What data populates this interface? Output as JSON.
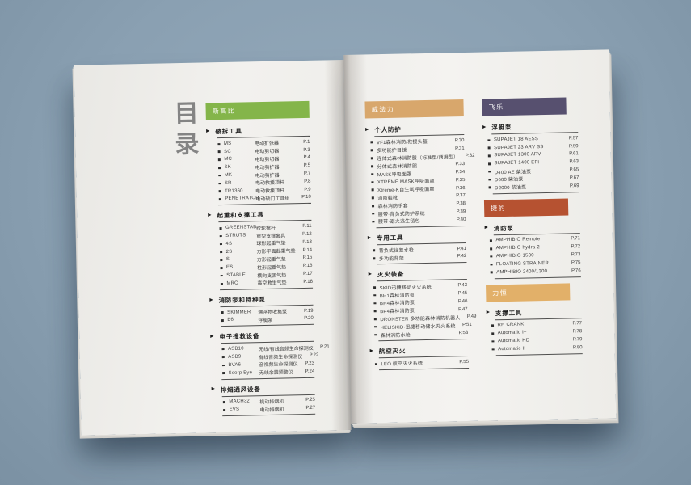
{
  "toc": {
    "title": "目录"
  },
  "left_page": {
    "blocks": [
      {
        "brand": "斯高比",
        "brand_color": "#84b54a",
        "sections": [
          {
            "title": "破拆工具",
            "items": [
              {
                "code": "MS",
                "desc": "电动扩张器",
                "page": "P.1"
              },
              {
                "code": "SC",
                "desc": "电动剪切器",
                "page": "P.3"
              },
              {
                "code": "MC",
                "desc": "电动剪切器",
                "page": "P.4"
              },
              {
                "code": "SK",
                "desc": "电动剪扩器",
                "page": "P.5"
              },
              {
                "code": "MK",
                "desc": "电动剪扩器",
                "page": "P.7"
              },
              {
                "code": "SR",
                "desc": "电动救援顶杆",
                "page": "P.8"
              },
              {
                "code": "TR1360",
                "desc": "电动救援顶杆",
                "page": "P.9"
              },
              {
                "code": "PENETRATOR",
                "desc": "电动破门工具组",
                "page": "P.10"
              }
            ]
          },
          {
            "title": "起重和支撑工具",
            "items": [
              {
                "code": "GREENSTAB",
                "desc": "绞轮撑杆",
                "page": "P.11"
              },
              {
                "code": "STRUTS",
                "desc": "重型支撑套具",
                "page": "P.12"
              },
              {
                "code": "4S",
                "desc": "球形起重气垫",
                "page": "P.13"
              },
              {
                "code": "2S",
                "desc": "方形平面起重气垫",
                "page": "P.14"
              },
              {
                "code": "S",
                "desc": "方形起重气垫",
                "page": "P.15"
              },
              {
                "code": "ES",
                "desc": "柱形起重气垫",
                "page": "P.16"
              },
              {
                "code": "STABLE",
                "desc": "横向支固气垫",
                "page": "P.17"
              },
              {
                "code": "MRC",
                "desc": "高空救生气垫",
                "page": "P.18"
              }
            ]
          },
          {
            "title": "消防泵和特种泵",
            "items": [
              {
                "code": "SKIMMER",
                "desc": "漂浮物收集泵",
                "page": "P.19"
              },
              {
                "code": "B6",
                "desc": "浮艇泵",
                "page": "P.20"
              }
            ]
          },
          {
            "title": "电子搜救设备",
            "items": [
              {
                "code": "ASB10",
                "desc": "无线/有线音频生命探测仪",
                "page": "P.21"
              },
              {
                "code": "ASB9",
                "desc": "有线音频生命探测仪",
                "page": "P.22"
              },
              {
                "code": "BVA6",
                "desc": "音视频生命探测仪",
                "page": "P.23"
              },
              {
                "code": "Scorp Eye",
                "desc": "无线余震预警仪",
                "page": "P.24"
              }
            ]
          },
          {
            "title": "排烟通风设备",
            "items": [
              {
                "code": "MACH32",
                "desc": "机动排烟机",
                "page": "P.25"
              },
              {
                "code": "EVS",
                "desc": "电动排烟机",
                "page": "P.27"
              }
            ]
          }
        ]
      }
    ]
  },
  "right_page": {
    "col1_blocks": [
      {
        "brand": "威法力",
        "brand_color": "#d8a76c",
        "sections": [
          {
            "title": "个人防护",
            "items": [
              {
                "code": "VF1森林消防/救援头盔",
                "desc": "",
                "page": "P.30"
              },
              {
                "code": "多功能护目镜",
                "desc": "",
                "page": "P.31"
              },
              {
                "code": "连体式森林消防服（标准型/两用型）",
                "desc": "",
                "page": "P.32"
              },
              {
                "code": "分体式森林消防服",
                "desc": "",
                "page": "P.33"
              },
              {
                "code": "MASK呼吸面罩",
                "desc": "",
                "page": "P.34"
              },
              {
                "code": "XTREME MASK呼吸面罩",
                "desc": "",
                "page": "P.35"
              },
              {
                "code": "Xtreme-K自生氧呼吸面罩",
                "desc": "",
                "page": "P.36"
              },
              {
                "code": "消防鞋靴",
                "desc": "",
                "page": "P.37"
              },
              {
                "code": "森林消防手套",
                "desc": "",
                "page": "P.38"
              },
              {
                "code": "腰带·背负式防护系统",
                "desc": "",
                "page": "P.39"
              },
              {
                "code": "腰带·避火逃生毯包",
                "desc": "",
                "page": "P.40"
              }
            ]
          },
          {
            "title": "专用工具",
            "items": [
              {
                "code": "背负式往复水枪",
                "desc": "",
                "page": "P.41"
              },
              {
                "code": "多功能背架",
                "desc": "",
                "page": "P.42"
              }
            ]
          },
          {
            "title": "灭火装备",
            "items": [
              {
                "code": "SKID迅捷移动灭火系统",
                "desc": "",
                "page": "P.43"
              },
              {
                "code": "BH1森林消防泵",
                "desc": "",
                "page": "P.45"
              },
              {
                "code": "BH4森林消防泵",
                "desc": "",
                "page": "P.46"
              },
              {
                "code": "BP4森林消防泵",
                "desc": "",
                "page": "P.47"
              },
              {
                "code": "DRONSTER 多功能森林消防机器人",
                "desc": "",
                "page": "P.49"
              },
              {
                "code": "HELISKID·迅捷移动储水灭火系统",
                "desc": "",
                "page": "P.51"
              },
              {
                "code": "森林消防水枪",
                "desc": "",
                "page": "P.53"
              }
            ]
          },
          {
            "title": "航空灭火",
            "items": [
              {
                "code": "LEO 航空灭火系统",
                "desc": "",
                "page": "P.55"
              }
            ]
          }
        ]
      }
    ],
    "col2_blocks": [
      {
        "brand": "飞乐",
        "brand_color": "#57506f",
        "sections": [
          {
            "title": "浮艇泵",
            "items": [
              {
                "code": "SUPAJET 18 AESS",
                "desc": "",
                "page": "P.57"
              },
              {
                "code": "SUPAJET 23 ARV SS",
                "desc": "",
                "page": "P.59"
              },
              {
                "code": "SUPAJET 1300 ARV",
                "desc": "",
                "page": "P.61"
              },
              {
                "code": "SUPAJET 1400 EFI",
                "desc": "",
                "page": "P.63"
              },
              {
                "code": "D400 AE 柴油泵",
                "desc": "",
                "page": "P.65"
              },
              {
                "code": "D600 柴油泵",
                "desc": "",
                "page": "P.67"
              },
              {
                "code": "D2000 柴油泵",
                "desc": "",
                "page": "P.69"
              }
            ]
          }
        ]
      },
      {
        "brand": "捷豹",
        "brand_color": "#b65231",
        "sections": [
          {
            "title": "消防泵",
            "items": [
              {
                "code": "AMPHIBIO Remote",
                "desc": "",
                "page": "P.71"
              },
              {
                "code": "AMPHIBIO hydra 2",
                "desc": "",
                "page": "P.72"
              },
              {
                "code": "AMPHIBIO 1500",
                "desc": "",
                "page": "P.73"
              },
              {
                "code": "FLOATING STRAINER",
                "desc": "",
                "page": "P.75"
              },
              {
                "code": "AMPHIBIO 2400/1300",
                "desc": "",
                "page": "P.76"
              }
            ]
          }
        ]
      },
      {
        "brand": "力恒",
        "brand_color": "#e2b069",
        "sections": [
          {
            "title": "支撑工具",
            "items": [
              {
                "code": "RH CRANK",
                "desc": "",
                "page": "P.77"
              },
              {
                "code": "Automatic I+",
                "desc": "",
                "page": "P.78"
              },
              {
                "code": "Automatic HD",
                "desc": "",
                "page": "P.79"
              },
              {
                "code": "Automatic II",
                "desc": "",
                "page": "P.80"
              }
            ]
          }
        ]
      }
    ]
  }
}
